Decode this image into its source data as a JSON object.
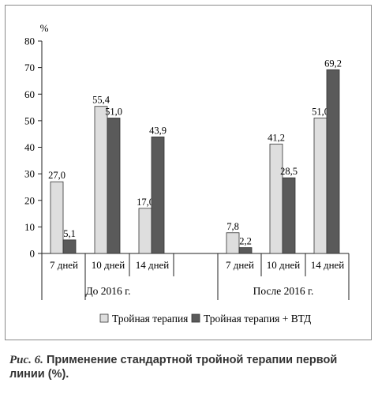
{
  "chart_data": {
    "type": "bar",
    "ylabel": "%",
    "ylim": [
      0,
      80
    ],
    "yticks": [
      0,
      10,
      20,
      30,
      40,
      50,
      60,
      70,
      80
    ],
    "groups": [
      {
        "label": "До 2016 г.",
        "categories": [
          "7 дней",
          "10 дней",
          "14 дней"
        ]
      },
      {
        "label": "После 2016 г.",
        "categories": [
          "7 дней",
          "10 дней",
          "14 дней"
        ]
      }
    ],
    "series": [
      {
        "name": "Тройная терапия",
        "color": "#dedede",
        "values": [
          27.0,
          55.4,
          17.0,
          7.8,
          41.2,
          51.0
        ],
        "labels": [
          "27,0",
          "55,4",
          "17,0",
          "7,8",
          "41,2",
          "51,0"
        ]
      },
      {
        "name": "Тройная терапия + ВТД",
        "color": "#5a5a5a",
        "values": [
          5.1,
          51.0,
          43.9,
          2.2,
          28.5,
          69.2
        ],
        "labels": [
          "5,1",
          "51,0",
          "43,9",
          "2,2",
          "28,5",
          "69,2"
        ]
      }
    ],
    "legend": "bottom",
    "grid": false
  },
  "caption": {
    "figure_label": "Рис. 6.",
    "text": "Применение стандартной тройной терапии первой линии (%)."
  }
}
